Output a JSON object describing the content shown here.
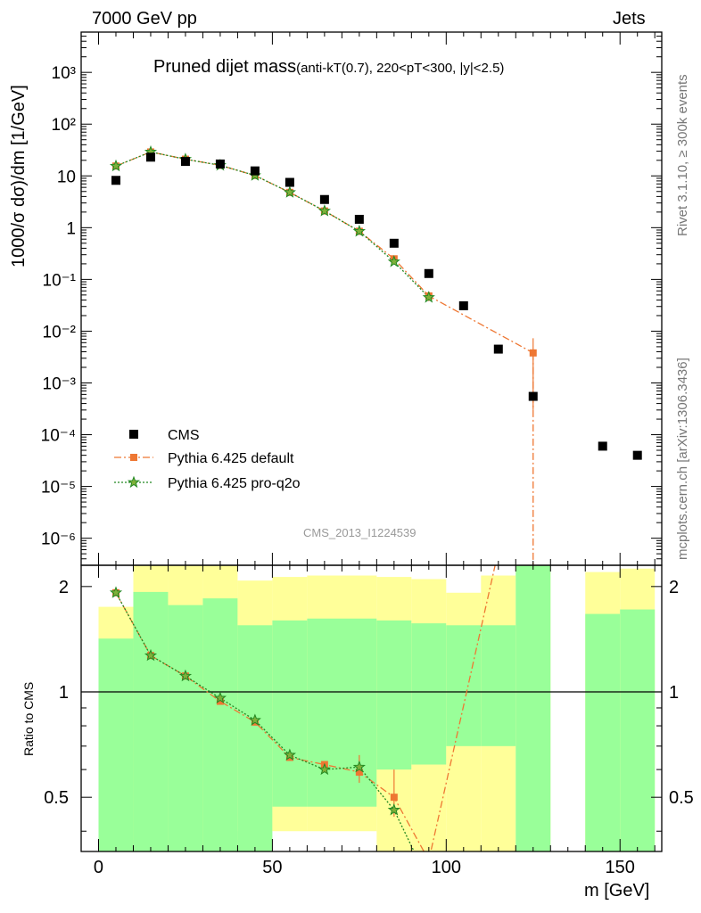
{
  "header": {
    "left": "7000 GeV pp",
    "right": "Jets",
    "title_main": "Pruned dijet mass",
    "title_sub": "(anti-kT(0.7), 220<pT<300, |y|<2.5)",
    "watermark": "CMS_2013_I1224539",
    "side_rivet": "Rivet 3.1.10, ≥ 300k events",
    "side_mcplots": "mcplots.cern.ch [arXiv:1306.3436]"
  },
  "colors": {
    "data": "#000000",
    "default": "#ee7733",
    "proq2o": "#228822",
    "proq2o_fill": "#7fb03a",
    "band_inner": "#99ff99",
    "band_outer": "#ffff99"
  },
  "chart_data": [
    {
      "type": "scatter",
      "panel": "main",
      "xlabel": "",
      "ylabel": "1000/σ dσ)/dm [1/GeV]",
      "xlim": [
        -5,
        162
      ],
      "ylim": [
        3e-07,
        6000
      ],
      "yscale": "log",
      "y_tick_labels": [
        "10⁻⁶",
        "10⁻⁵",
        "10⁻⁴",
        "10⁻³",
        "10⁻²",
        "10⁻¹",
        "1",
        "10",
        "10²",
        "10³"
      ],
      "legend_position": "lower-left",
      "series": [
        {
          "name": "CMS",
          "style": "marker-square",
          "x": [
            5,
            15,
            25,
            35,
            45,
            55,
            65,
            75,
            85,
            95,
            105,
            115,
            125,
            145,
            155
          ],
          "y": [
            8.2,
            23,
            19,
            17,
            12.5,
            7.5,
            3.5,
            1.45,
            0.5,
            0.13,
            0.031,
            0.0045,
            0.00055,
            6e-05,
            4e-05
          ]
        },
        {
          "name": "Pythia 6.425 default",
          "style": "dash-dot-square",
          "x": [
            5,
            15,
            25,
            35,
            45,
            55,
            65,
            75,
            85,
            95,
            125
          ],
          "y": [
            15.5,
            29,
            21,
            16,
            10.2,
            4.8,
            2.1,
            0.85,
            0.25,
            0.048,
            0.0038
          ],
          "yerr": [
            0,
            0,
            0,
            0,
            0,
            0,
            0,
            0,
            0.04,
            0.01,
            0.0035
          ]
        },
        {
          "name": "Pythia 6.425 pro-q2o",
          "style": "dotted-star",
          "x": [
            5,
            15,
            25,
            35,
            45,
            55,
            65,
            75,
            85,
            95
          ],
          "y": [
            15.5,
            29,
            21,
            16,
            10.2,
            4.8,
            2.1,
            0.85,
            0.22,
            0.045
          ]
        }
      ]
    },
    {
      "type": "line",
      "panel": "ratio",
      "xlabel": "m [GeV]",
      "ylabel": "Ratio to CMS",
      "xlim": [
        -5,
        162
      ],
      "ylim": [
        0.35,
        2.3
      ],
      "x_ticks": [
        0,
        50,
        100,
        150
      ],
      "y_ticks": [
        0.5,
        1,
        2
      ],
      "y_tick_labels": [
        "0.5",
        "1",
        "2"
      ],
      "bands": [
        {
          "xlo": 0,
          "xhi": 10,
          "inner": [
            0.3,
            1.42
          ],
          "outer": [
            0.3,
            1.75
          ]
        },
        {
          "xlo": 10,
          "xhi": 20,
          "inner": [
            0.3,
            1.93
          ],
          "outer": [
            0.3,
            2.5
          ]
        },
        {
          "xlo": 20,
          "xhi": 30,
          "inner": [
            0.3,
            1.77
          ],
          "outer": [
            0.3,
            2.5
          ]
        },
        {
          "xlo": 30,
          "xhi": 40,
          "inner": [
            0.3,
            1.85
          ],
          "outer": [
            0.3,
            2.5
          ]
        },
        {
          "xlo": 40,
          "xhi": 50,
          "inner": [
            0.3,
            1.55
          ],
          "outer": [
            0.4,
            2.08
          ]
        },
        {
          "xlo": 50,
          "xhi": 60,
          "inner": [
            0.47,
            1.6
          ],
          "outer": [
            0.4,
            2.13
          ]
        },
        {
          "xlo": 60,
          "xhi": 80,
          "inner": [
            0.47,
            1.62
          ],
          "outer": [
            0.4,
            2.15
          ]
        },
        {
          "xlo": 80,
          "xhi": 90,
          "inner": [
            0.6,
            1.6
          ],
          "outer": [
            0.3,
            2.13
          ]
        },
        {
          "xlo": 90,
          "xhi": 100,
          "inner": [
            0.62,
            1.57
          ],
          "outer": [
            0.3,
            2.1
          ]
        },
        {
          "xlo": 100,
          "xhi": 110,
          "inner": [
            0.7,
            1.55
          ],
          "outer": [
            0.3,
            1.92
          ]
        },
        {
          "xlo": 110,
          "xhi": 120,
          "inner": [
            0.7,
            1.55
          ],
          "outer": [
            0.3,
            2.15
          ]
        },
        {
          "xlo": 120,
          "xhi": 130,
          "inner": [
            0.3,
            2.5
          ],
          "outer": [
            0.3,
            2.5
          ]
        },
        {
          "xlo": 140,
          "xhi": 150,
          "inner": [
            0.3,
            1.67
          ],
          "outer": [
            0.3,
            2.2
          ]
        },
        {
          "xlo": 150,
          "xhi": 160,
          "inner": [
            0.3,
            1.72
          ],
          "outer": [
            0.3,
            2.25
          ]
        }
      ],
      "series": [
        {
          "name": "Pythia 6.425 default",
          "x": [
            5,
            15,
            25,
            35,
            45,
            55,
            65,
            75,
            85,
            95,
            114.5
          ],
          "y": [
            1.92,
            1.27,
            1.11,
            0.94,
            0.82,
            0.65,
            0.62,
            0.59,
            0.5,
            0.33,
            2.4
          ],
          "marked_points": 9
        },
        {
          "name": "Pythia 6.425 pro-q2o",
          "x": [
            5,
            15,
            25,
            35,
            45,
            55,
            65,
            75,
            85,
            92
          ],
          "y": [
            1.92,
            1.27,
            1.11,
            0.96,
            0.83,
            0.66,
            0.6,
            0.61,
            0.46,
            0.33
          ],
          "marked_points": 9
        }
      ]
    }
  ]
}
